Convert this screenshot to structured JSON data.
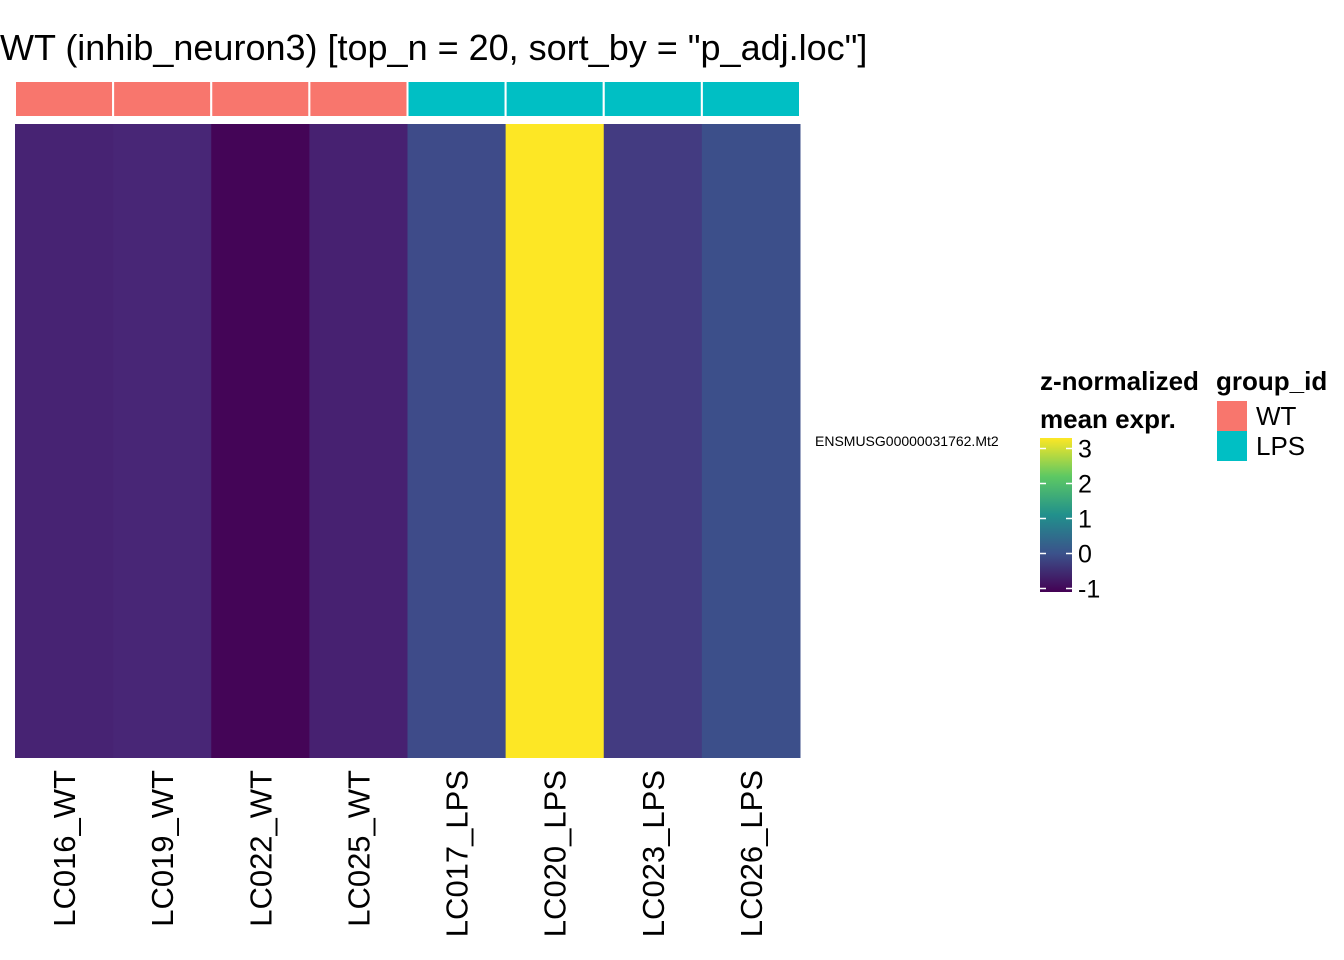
{
  "chart_data": {
    "type": "heatmap",
    "title": "WT (inhib_neuron3) [top_n = 20, sort_by = \"p_adj.loc\"]",
    "columns": [
      "LC016_WT",
      "LC019_WT",
      "LC022_WT",
      "LC025_WT",
      "LC017_LPS",
      "LC020_LPS",
      "LC023_LPS",
      "LC026_LPS"
    ],
    "column_groups": [
      "WT",
      "WT",
      "WT",
      "WT",
      "LPS",
      "LPS",
      "LPS",
      "LPS"
    ],
    "rows": [
      "ENSMUSG00000031762.Mt2"
    ],
    "values": [
      [
        -0.62,
        -0.58,
        -1.05,
        -0.65,
        0.02,
        3.3,
        -0.25,
        0.1
      ]
    ],
    "colorbar": {
      "title_line1": "z-normalized",
      "title_line2": "mean expr.",
      "ticks": [
        3,
        2,
        1,
        0,
        -1
      ],
      "tick_labels": [
        "3",
        "2",
        "1",
        "0",
        "-1"
      ],
      "range": [
        -1.1,
        3.3
      ],
      "palette": "viridis"
    },
    "group_legend": {
      "title": "group_id",
      "items": [
        {
          "label": "WT",
          "color": "#F8766D"
        },
        {
          "label": "LPS",
          "color": "#00BFC4"
        }
      ]
    }
  }
}
